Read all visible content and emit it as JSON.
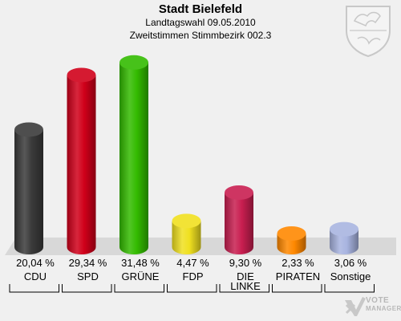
{
  "header": {
    "title": "Stadt Bielefeld",
    "subtitle1": "Landtagswahl 09.05.2010",
    "subtitle2": "Zweitstimmen Stimmbezirk 002.3"
  },
  "chart_data": {
    "type": "bar",
    "title": "Stadt Bielefeld",
    "subtitle": [
      "Landtagswahl 09.05.2010",
      "Zweitstimmen Stimmbezirk 002.3"
    ],
    "categories": [
      "CDU",
      "SPD",
      "GRÜNE",
      "FDP",
      "DIE LINKE",
      "PIRATEN",
      "Sonstige"
    ],
    "category_lines": [
      [
        "CDU"
      ],
      [
        "SPD"
      ],
      [
        "GRÜNE"
      ],
      [
        "FDP"
      ],
      [
        "DIE",
        "LINKE"
      ],
      [
        "PIRATEN"
      ],
      [
        "Sonstige"
      ]
    ],
    "values": [
      20.04,
      29.34,
      31.48,
      4.47,
      9.3,
      2.33,
      3.06
    ],
    "value_labels": [
      "20,04 %",
      "29,34 %",
      "31,48 %",
      "4,47 %",
      "9,30 %",
      "2,33 %",
      "3,06 %"
    ],
    "colors": [
      "#3a3a3a",
      "#d0001a",
      "#33bb00",
      "#f0e020",
      "#c81e50",
      "#ff8800",
      "#a8b4e0"
    ],
    "ylim": [
      0,
      32
    ],
    "xlabel": "",
    "ylabel": "",
    "grid": false,
    "legend": "none"
  },
  "watermark": {
    "line1": "VOTE",
    "line2": "MANAGER"
  }
}
